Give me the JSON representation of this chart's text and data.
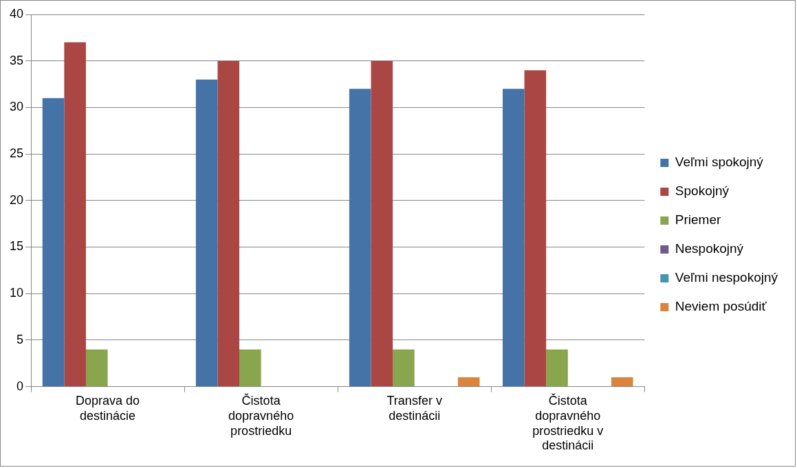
{
  "chart_data": {
    "type": "bar",
    "categories": [
      "Doprava do destinácie",
      "Čistota dopravného prostriedku",
      "Transfer v destinácii",
      "Čistota dopravného prostriedku v destinácii"
    ],
    "series": [
      {
        "name": "Veľmi spokojný",
        "color": "#4572a7",
        "values": [
          31,
          33,
          32,
          32
        ]
      },
      {
        "name": "Spokojný",
        "color": "#aa4643",
        "values": [
          37,
          35,
          35,
          34
        ]
      },
      {
        "name": "Priemer",
        "color": "#89a54e",
        "values": [
          4,
          4,
          4,
          4
        ]
      },
      {
        "name": "Nespokojný",
        "color": "#71588f",
        "values": [
          0,
          0,
          0,
          0
        ]
      },
      {
        "name": "Veľmi nespokojný",
        "color": "#4198af",
        "values": [
          0,
          0,
          0,
          0
        ]
      },
      {
        "name": "Neviem posúdiť",
        "color": "#db843d",
        "values": [
          0,
          0,
          1,
          1
        ]
      }
    ],
    "ylim": [
      0,
      40
    ],
    "yticks": [
      0,
      5,
      10,
      15,
      20,
      25,
      30,
      35,
      40
    ],
    "grid": "y",
    "legend": "right"
  }
}
